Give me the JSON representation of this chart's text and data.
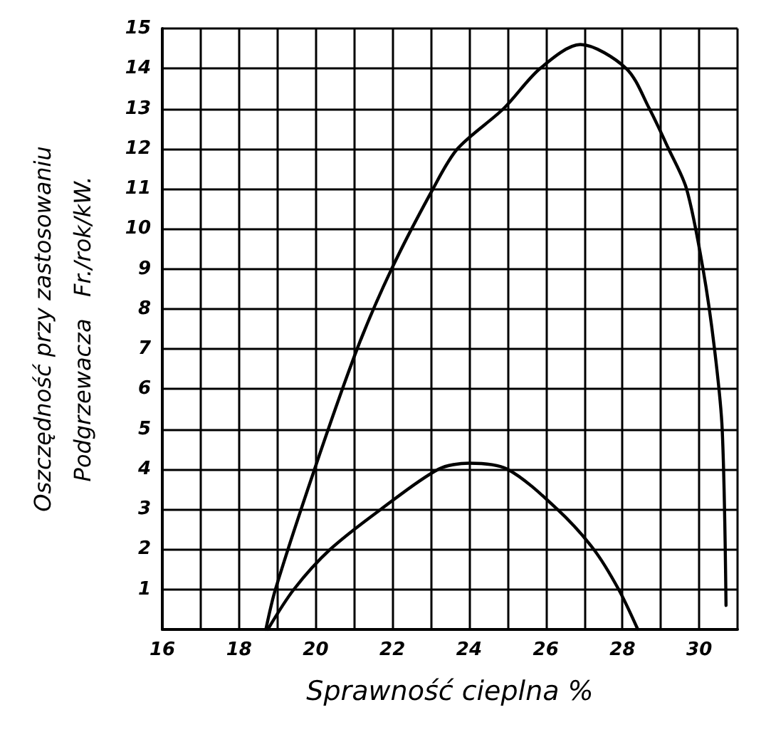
{
  "chart_data": {
    "type": "line",
    "xlabel": "Sprawność cieplna %",
    "ylabel": "Oszczędność przy zastosowaniu\nPodgrzewacza   Fr./rok/kW.",
    "xlim": [
      16,
      31
    ],
    "xticks": [
      16,
      18,
      20,
      22,
      24,
      26,
      28,
      30
    ],
    "ylim": [
      0,
      15
    ],
    "yticks": [
      1,
      2,
      3,
      4,
      5,
      6,
      7,
      8,
      9,
      10,
      11,
      12,
      13,
      14,
      15
    ],
    "grid": true,
    "marker": "none",
    "line_style": "solid",
    "series": [
      {
        "color": "#000000",
        "x": [
          18.7,
          18.95,
          19.97,
          21.08,
          21.98,
          23.06,
          23.7,
          24.9,
          25.85,
          26.9,
          28.1,
          28.7,
          29.2,
          29.67,
          30.1,
          30.4,
          30.6,
          30.7
        ],
        "values": [
          0,
          1,
          4,
          7,
          9,
          11,
          12,
          13,
          14,
          14.6,
          14,
          13,
          12,
          11,
          9,
          7,
          5,
          0.6
        ]
      },
      {
        "color": "#000000",
        "x": [
          18.75,
          19.43,
          20.38,
          21.7,
          23.2,
          24.0,
          25.0,
          26.3,
          27.25,
          27.9,
          28.4
        ],
        "values": [
          0,
          1,
          2,
          3,
          4,
          4.15,
          4,
          3,
          2,
          1,
          0
        ]
      }
    ]
  }
}
